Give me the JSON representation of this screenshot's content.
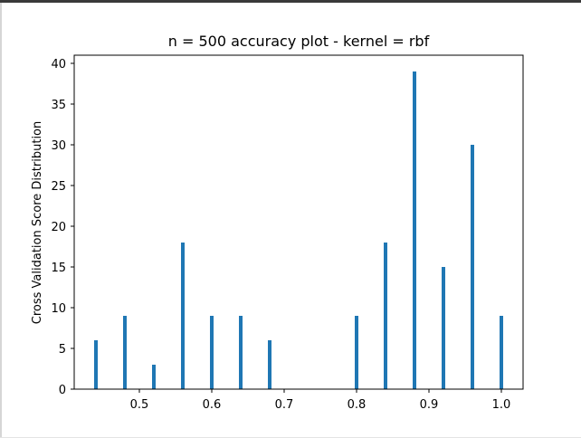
{
  "colors": {
    "bar": "#1f77b4",
    "axis": "#000000",
    "window_border": "#3a3a3a"
  },
  "chart_data": {
    "type": "bar",
    "title": "n = 500 accuracy plot - kernel = rbf",
    "xlabel": "",
    "ylabel": "Cross Validation Score Distribution",
    "xlim": [
      0.41,
      1.03
    ],
    "ylim": [
      0,
      41
    ],
    "xticks": [
      0.5,
      0.6,
      0.7,
      0.8,
      0.9,
      1.0
    ],
    "xtick_labels": [
      "0.5",
      "0.6",
      "0.7",
      "0.8",
      "0.9",
      "1.0"
    ],
    "yticks": [
      0,
      5,
      10,
      15,
      20,
      25,
      30,
      35,
      40
    ],
    "ytick_labels": [
      "0",
      "5",
      "10",
      "15",
      "20",
      "25",
      "30",
      "35",
      "40"
    ],
    "bar_width": 0.005,
    "x": [
      0.44,
      0.48,
      0.52,
      0.56,
      0.6,
      0.64,
      0.68,
      0.8,
      0.84,
      0.88,
      0.92,
      0.96,
      1.0
    ],
    "values": [
      6,
      9,
      3,
      18,
      9,
      9,
      6,
      9,
      18,
      39,
      15,
      30,
      9
    ],
    "grid": false,
    "legend": "none"
  }
}
